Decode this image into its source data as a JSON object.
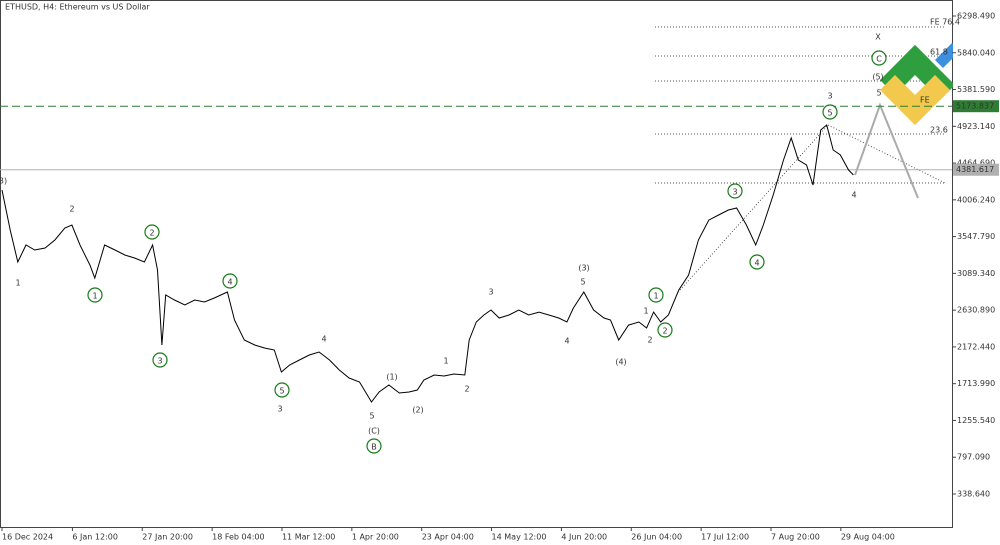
{
  "chart_data": {
    "type": "line",
    "title": "ETHUSD, H4:  Ethereum vs US Dollar",
    "color": "#000000",
    "x": [
      0,
      15,
      29,
      44,
      60,
      79,
      97,
      115,
      128,
      143,
      161,
      170,
      188,
      207,
      225,
      243,
      261,
      276,
      285,
      293,
      300,
      316,
      335,
      353,
      371,
      389,
      413,
      426,
      444,
      463,
      481,
      499,
      512,
      527,
      545,
      563,
      581,
      600,
      618,
      636,
      655,
      677,
      691,
      709,
      728,
      746,
      761,
      773,
      792,
      810,
      828,
      848,
      856,
      869,
      883,
      896,
      911,
      929,
      947,
      965,
      984,
      1002,
      1020,
      1035,
      1047,
      1066,
      1084,
      1103,
      1115,
      1130,
      1148,
      1167,
      1181,
      1194,
      1207,
      1221,
      1240,
      1258,
      1276,
      1295,
      1313,
      1331,
      1346,
      1364,
      1381,
      1395,
      1413,
      1432,
      1446,
      1459,
      1474,
      1486,
      1500,
      1511,
      1523,
      1536,
      1551,
      1560
    ],
    "values": [
      4129,
      3630,
      3231,
      3443,
      3381,
      3406,
      3505,
      3655,
      3692,
      3443,
      3194,
      3032,
      3443,
      3381,
      3318,
      3281,
      3231,
      3443,
      3131,
      2196,
      2820,
      2757,
      2695,
      2757,
      2732,
      2782,
      2857,
      2508,
      2259,
      2196,
      2159,
      2134,
      1860,
      1947,
      2009,
      2072,
      2109,
      2009,
      1885,
      1785,
      1735,
      1486,
      1610,
      1698,
      1598,
      1610,
      1635,
      1760,
      1822,
      1810,
      1835,
      1822,
      2259,
      2483,
      2570,
      2633,
      2533,
      2570,
      2633,
      2570,
      2607,
      2570,
      2533,
      2483,
      2658,
      2857,
      2633,
      2533,
      2508,
      2259,
      2445,
      2483,
      2408,
      2607,
      2483,
      2570,
      2882,
      3069,
      3505,
      3754,
      3817,
      3879,
      3904,
      3692,
      3443,
      3692,
      4066,
      4503,
      4777,
      4503,
      4441,
      4191,
      4877,
      4939,
      4628,
      4566,
      4379,
      4316
    ],
    "xlim": [
      0,
      1737
    ],
    "xticks": [
      {
        "value": 0,
        "label": "16 Dec 2024"
      },
      {
        "value": 129,
        "label": "6 Jan 12:00"
      },
      {
        "value": 257,
        "label": "27 Jan 20:00"
      },
      {
        "value": 385,
        "label": "18 Feb 04:00"
      },
      {
        "value": 513,
        "label": "11 Mar 12:00"
      },
      {
        "value": 641,
        "label": "1 Apr 20:00"
      },
      {
        "value": 769,
        "label": "23 Apr 04:00"
      },
      {
        "value": 897,
        "label": "14 May 12:00"
      },
      {
        "value": 1025,
        "label": "4 Jun 20:00"
      },
      {
        "value": 1153,
        "label": "26 Jun 04:00"
      },
      {
        "value": 1281,
        "label": "17 Jul 12:00"
      },
      {
        "value": 1409,
        "label": "7 Aug 20:00"
      },
      {
        "value": 1537,
        "label": "29 Aug 04:00"
      }
    ],
    "ylim": [
      -73,
      6498
    ],
    "yticks": [
      {
        "value": 338.64,
        "label": "338.640"
      },
      {
        "value": 797.09,
        "label": "797.090"
      },
      {
        "value": 1255.54,
        "label": "1255.540"
      },
      {
        "value": 1713.99,
        "label": "1713.990"
      },
      {
        "value": 2172.44,
        "label": "2172.440"
      },
      {
        "value": 2630.89,
        "label": "2630.890"
      },
      {
        "value": 3089.34,
        "label": "3089.340"
      },
      {
        "value": 3547.79,
        "label": "3547.790"
      },
      {
        "value": 4006.24,
        "label": "4006.240"
      },
      {
        "value": 4464.69,
        "label": "4464.690"
      },
      {
        "value": 4923.14,
        "label": "4923.140"
      },
      {
        "value": 5381.59,
        "label": "5381.590"
      },
      {
        "value": 5840.04,
        "label": "5840.040"
      },
      {
        "value": 6298.49,
        "label": "6298.490"
      }
    ],
    "price_lines": [
      {
        "value": 5173.837,
        "color": "#2e7d32"
      },
      {
        "value": 4381.617,
        "color": "#b0b0b0"
      }
    ],
    "fib_labels": [
      "FE 76.4",
      "61.8",
      "FE",
      "23.6"
    ],
    "annotations": [
      {
        "text": "3)",
        "color": "#1a237e"
      },
      {
        "text": "1",
        "color": "#8b1a1a"
      },
      {
        "text": "2",
        "color": "#8b1a1a"
      },
      {
        "text": "1",
        "color": "#1a7a1a",
        "circled": true
      },
      {
        "text": "2",
        "color": "#1a7a1a",
        "circled": true
      },
      {
        "text": "3",
        "color": "#1a7a1a",
        "circled": true
      },
      {
        "text": "4",
        "color": "#1a7a1a",
        "circled": true
      },
      {
        "text": "5",
        "color": "#1a7a1a",
        "circled": true
      },
      {
        "text": "3",
        "color": "#8b1a1a"
      },
      {
        "text": "4",
        "color": "#8b1a1a"
      },
      {
        "text": "5",
        "color": "#8b1a1a"
      },
      {
        "text": "(C)",
        "color": "#1a237e"
      },
      {
        "text": "B",
        "color": "#1a7a1a",
        "circled": true
      },
      {
        "text": "(1)",
        "color": "#1a237e"
      },
      {
        "text": "(2)",
        "color": "#1a237e"
      },
      {
        "text": "1",
        "color": "#8b1a1a"
      },
      {
        "text": "2",
        "color": "#8b1a1a"
      },
      {
        "text": "3",
        "color": "#8b1a1a"
      },
      {
        "text": "4",
        "color": "#8b1a1a"
      },
      {
        "text": "5",
        "color": "#8b1a1a"
      },
      {
        "text": "(3)",
        "color": "#1a237e"
      },
      {
        "text": "(4)",
        "color": "#1a237e"
      },
      {
        "text": "1",
        "color": "#8b1a1a"
      },
      {
        "text": "2",
        "color": "#8b1a1a"
      },
      {
        "text": "1",
        "color": "#1a7a1a",
        "circled": true
      },
      {
        "text": "2",
        "color": "#1a7a1a",
        "circled": true
      },
      {
        "text": "3",
        "color": "#1a7a1a",
        "circled": true
      },
      {
        "text": "4",
        "color": "#1a7a1a",
        "circled": true
      },
      {
        "text": "5",
        "color": "#1a7a1a",
        "circled": true
      },
      {
        "text": "3",
        "color": "#8b1a1a"
      },
      {
        "text": "4",
        "color": "#8b1a1a"
      },
      {
        "text": "X",
        "color": "#8b1a1a"
      },
      {
        "text": "C",
        "color": "#1a7a1a",
        "circled": true
      },
      {
        "text": "(5)",
        "color": "#1a237e"
      },
      {
        "text": "5",
        "color": "#8b1a1a"
      }
    ]
  }
}
